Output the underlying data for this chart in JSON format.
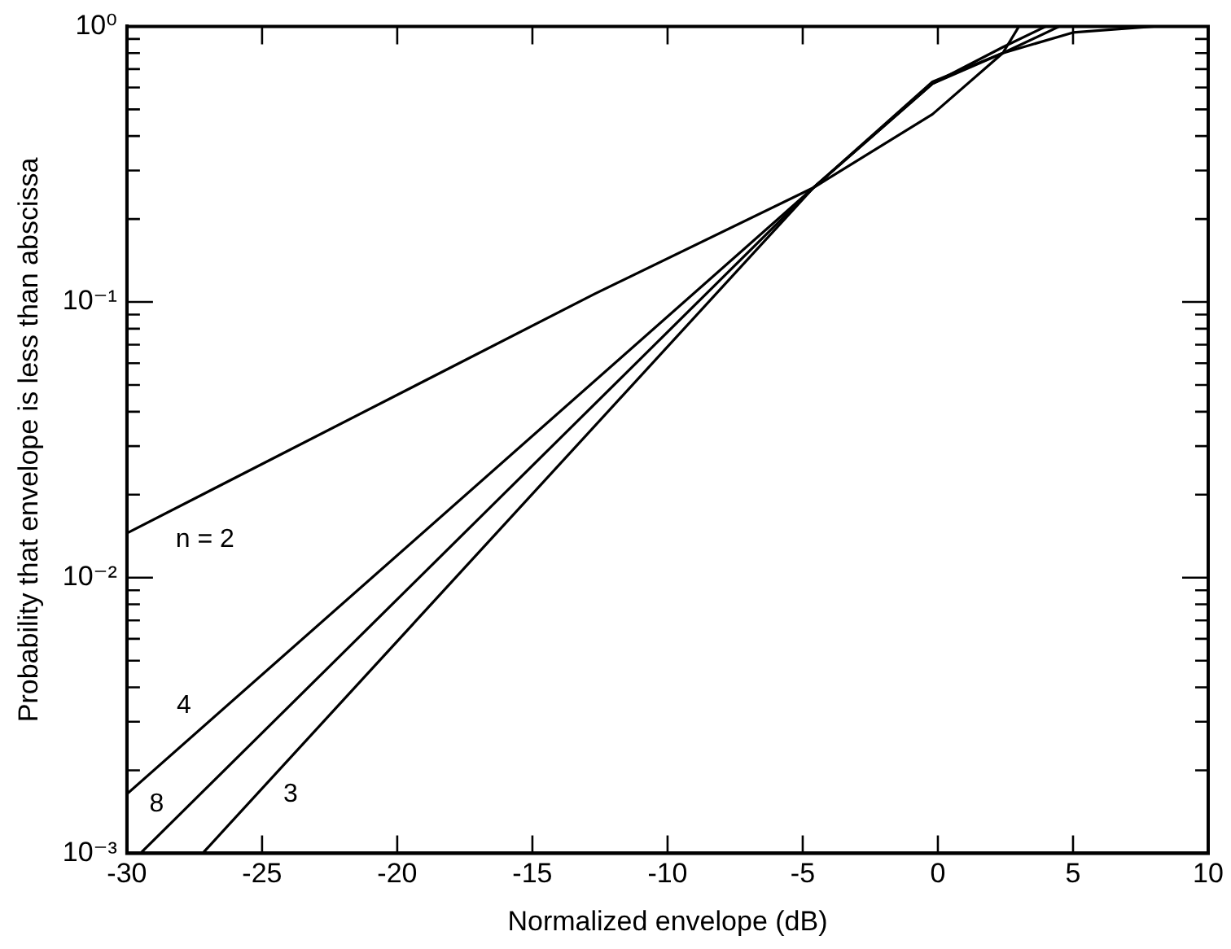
{
  "chart_data": {
    "type": "line",
    "xlabel": "Normalized envelope (dB)",
    "ylabel": "Probability that envelope is less than abscissa",
    "log": "y",
    "grid": false,
    "legend": false,
    "marker": "none",
    "line_style": "solid",
    "xlim": [
      -30,
      10
    ],
    "xticks": [
      -30,
      -25,
      -20,
      -15,
      -10,
      -5,
      0,
      5,
      10
    ],
    "ylim": [
      0.001,
      1
    ],
    "yticks": [
      {
        "value": 0.001,
        "label": "10⁻³"
      },
      {
        "value": 0.002,
        "label": null
      },
      {
        "value": 0.003,
        "label": null
      },
      {
        "value": 0.004,
        "label": null
      },
      {
        "value": 0.005,
        "label": null
      },
      {
        "value": 0.006,
        "label": null
      },
      {
        "value": 0.007,
        "label": null
      },
      {
        "value": 0.008,
        "label": null
      },
      {
        "value": 0.009,
        "label": null
      },
      {
        "value": 0.01,
        "label": "10⁻²"
      },
      {
        "value": 0.02,
        "label": null
      },
      {
        "value": 0.03,
        "label": null
      },
      {
        "value": 0.04,
        "label": null
      },
      {
        "value": 0.05,
        "label": null
      },
      {
        "value": 0.06,
        "label": null
      },
      {
        "value": 0.07,
        "label": null
      },
      {
        "value": 0.08,
        "label": null
      },
      {
        "value": 0.09,
        "label": null
      },
      {
        "value": 0.1,
        "label": "10⁻¹"
      },
      {
        "value": 0.2,
        "label": null
      },
      {
        "value": 0.3,
        "label": null
      },
      {
        "value": 0.4,
        "label": null
      },
      {
        "value": 0.5,
        "label": null
      },
      {
        "value": 0.6,
        "label": null
      },
      {
        "value": 0.7,
        "label": null
      },
      {
        "value": 0.8,
        "label": null
      },
      {
        "value": 0.9,
        "label": null
      },
      {
        "value": 1,
        "label": "10⁰"
      }
    ],
    "series": [
      {
        "name": "n = 2",
        "color": "#000000",
        "x": [
          -30,
          -12.7,
          -4.6,
          -0.2,
          2.4,
          5,
          8
        ],
        "values": [
          0.0145,
          0.107,
          0.26,
          0.48,
          0.8,
          0.95,
          1
        ]
      },
      {
        "name": "4",
        "color": "#000000",
        "x": [
          -30,
          -4.6,
          -0.2,
          2.4,
          4.5
        ],
        "values": [
          0.00164,
          0.26,
          0.62,
          0.8,
          1
        ]
      },
      {
        "name": "8",
        "color": "#000000",
        "x": [
          -29.5,
          -4.6,
          -0.2,
          2.4,
          4
        ],
        "values": [
          0.001,
          0.26,
          0.62,
          0.84,
          1
        ]
      },
      {
        "name": "3",
        "color": "#000000",
        "x": [
          -27.2,
          -4.6,
          -0.2,
          2.4,
          3
        ],
        "values": [
          0.001,
          0.26,
          0.63,
          0.8,
          1
        ]
      }
    ]
  }
}
